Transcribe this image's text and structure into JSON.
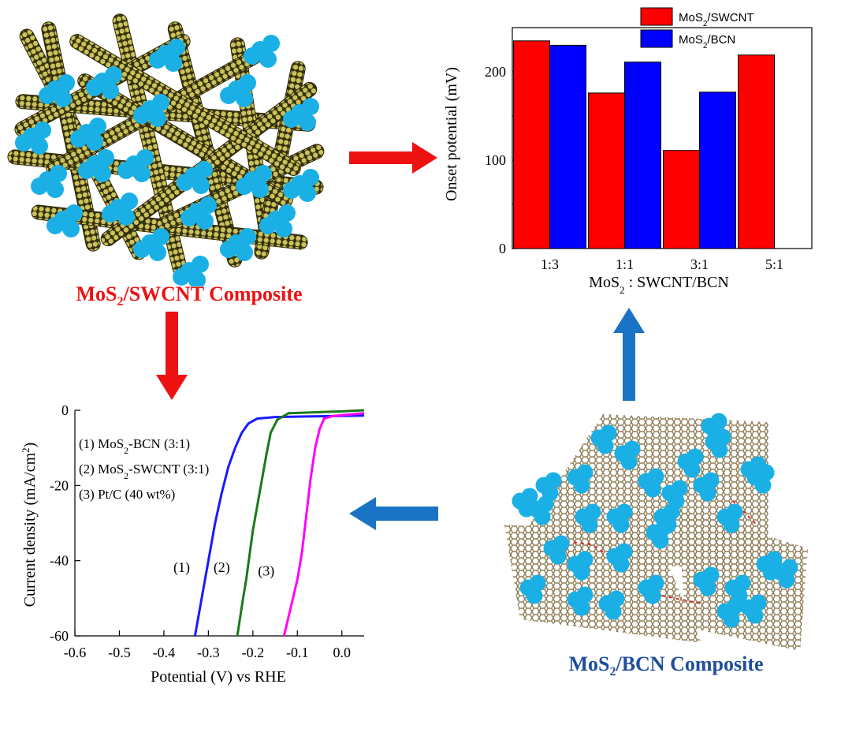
{
  "top_left": {
    "caption_prefix": "MoS",
    "caption_sub": "2",
    "caption_suffix": "/SWCNT Composite"
  },
  "bottom_right": {
    "caption_prefix": "MoS",
    "caption_sub": "2",
    "caption_suffix": "/BCN Composite"
  },
  "colors": {
    "red_arrow": "#ee1111",
    "blue_arrow": "#1a73c4",
    "mos2_particle": "#1ab0e6",
    "tube": "#6b6320"
  },
  "chart_data": [
    {
      "type": "bar",
      "categories": [
        "1:3",
        "1:1",
        "3:1",
        "5:1"
      ],
      "series": [
        {
          "name": "MoS2/SWCNT",
          "color": "#ff0000",
          "values": [
            235,
            176,
            111,
            219
          ]
        },
        {
          "name": "MoS2/BCN",
          "color": "#0000ff",
          "values": [
            230,
            211,
            177,
            null
          ]
        }
      ],
      "legend": [
        {
          "prefix": "MoS",
          "sub": "2",
          "suffix": "/SWCNT"
        },
        {
          "prefix": "MoS",
          "sub": "2",
          "suffix": "/BCN"
        }
      ],
      "ylabel": "Onset potential (mV)",
      "xlabel_prefix": "MoS",
      "xlabel_sub": "2",
      "xlabel_suffix": " : SWCNT/BCN",
      "ylim": [
        0,
        250
      ],
      "yticks": [
        "0",
        "100",
        "200"
      ],
      "legend_position": "top"
    },
    {
      "type": "line",
      "xlim": [
        -0.6,
        0.05
      ],
      "ylim": [
        -60,
        0
      ],
      "xticks": [
        "-0.6",
        "-0.5",
        "-0.4",
        "-0.3",
        "-0.2",
        "-0.1",
        "0.0"
      ],
      "yticks": [
        "0",
        "-20",
        "-40",
        "-60"
      ],
      "xlabel": "Potential (V) vs RHE",
      "ylabel_main": "Current density (mA/cm",
      "ylabel_sup": "2",
      "ylabel_end": ")",
      "legend_lines": [
        {
          "prefix": "(1) MoS",
          "sub": "2",
          "suffix": "-BCN (3:1)"
        },
        {
          "prefix": "(2) MoS",
          "sub": "2",
          "suffix": "-SWCNT (3:1)"
        },
        {
          "prefix": "(3) Pt/C (40 wt%)",
          "sub": "",
          "suffix": ""
        }
      ],
      "curve_labels": [
        "(1)",
        "(2)",
        "(3)"
      ],
      "series": [
        {
          "name": "(1)",
          "color": "#1a1aff",
          "points": [
            [
              -0.33,
              -60
            ],
            [
              -0.315,
              -50
            ],
            [
              -0.3,
              -40
            ],
            [
              -0.285,
              -30
            ],
            [
              -0.27,
              -22
            ],
            [
              -0.255,
              -15
            ],
            [
              -0.24,
              -10
            ],
            [
              -0.225,
              -6
            ],
            [
              -0.21,
              -3.5
            ],
            [
              -0.19,
              -2.2
            ],
            [
              -0.15,
              -1.8
            ],
            [
              -0.05,
              -1.6
            ],
            [
              0.05,
              -1.4
            ]
          ]
        },
        {
          "name": "(2)",
          "color": "#1a7a1a",
          "points": [
            [
              -0.235,
              -60
            ],
            [
              -0.222,
              -50
            ],
            [
              -0.215,
              -45
            ],
            [
              -0.2,
              -32
            ],
            [
              -0.185,
              -22
            ],
            [
              -0.17,
              -12
            ],
            [
              -0.16,
              -6
            ],
            [
              -0.145,
              -2.5
            ],
            [
              -0.12,
              -0.8
            ],
            [
              -0.05,
              -0.5
            ],
            [
              0.0,
              -0.3
            ],
            [
              0.05,
              0.0
            ]
          ]
        },
        {
          "name": "(3)",
          "color": "#ff00ff",
          "points": [
            [
              -0.13,
              -60
            ],
            [
              -0.12,
              -55
            ],
            [
              -0.11,
              -50
            ],
            [
              -0.1,
              -45
            ],
            [
              -0.09,
              -38
            ],
            [
              -0.08,
              -28
            ],
            [
              -0.07,
              -18
            ],
            [
              -0.06,
              -10
            ],
            [
              -0.05,
              -5
            ],
            [
              -0.04,
              -2.2
            ],
            [
              -0.02,
              -1.5
            ],
            [
              0.05,
              -0.8
            ]
          ]
        }
      ]
    }
  ]
}
